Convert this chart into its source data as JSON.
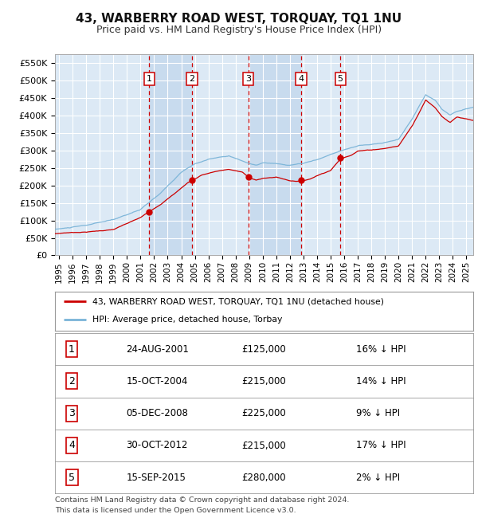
{
  "title": "43, WARBERRY ROAD WEST, TORQUAY, TQ1 1NU",
  "subtitle": "Price paid vs. HM Land Registry's House Price Index (HPI)",
  "plot_bg_color": "#dce9f5",
  "hpi_color": "#7ab4d8",
  "price_color": "#cc0000",
  "grid_color": "#ffffff",
  "ylim": [
    0,
    575000
  ],
  "yticks": [
    0,
    50000,
    100000,
    150000,
    200000,
    250000,
    300000,
    350000,
    400000,
    450000,
    500000,
    550000
  ],
  "ytick_labels": [
    "£0",
    "£50K",
    "£100K",
    "£150K",
    "£200K",
    "£250K",
    "£300K",
    "£350K",
    "£400K",
    "£450K",
    "£500K",
    "£550K"
  ],
  "xlim_start": 1994.7,
  "xlim_end": 2025.5,
  "transactions": [
    {
      "num": 1,
      "date": "24-AUG-2001",
      "year": 2001.65,
      "price": 125000,
      "pct": "16% ↓ HPI"
    },
    {
      "num": 2,
      "date": "15-OCT-2004",
      "year": 2004.79,
      "price": 215000,
      "pct": "14% ↓ HPI"
    },
    {
      "num": 3,
      "date": "05-DEC-2008",
      "year": 2008.93,
      "price": 225000,
      "pct": "9% ↓ HPI"
    },
    {
      "num": 4,
      "date": "30-OCT-2012",
      "year": 2012.83,
      "price": 215000,
      "pct": "17% ↓ HPI"
    },
    {
      "num": 5,
      "date": "15-SEP-2015",
      "year": 2015.71,
      "price": 280000,
      "pct": "2% ↓ HPI"
    }
  ],
  "legend_label_price": "43, WARBERRY ROAD WEST, TORQUAY, TQ1 1NU (detached house)",
  "legend_label_hpi": "HPI: Average price, detached house, Torbay",
  "footnote_line1": "Contains HM Land Registry data © Crown copyright and database right 2024.",
  "footnote_line2": "This data is licensed under the Open Government Licence v3.0.",
  "xtick_years": [
    1995,
    1996,
    1997,
    1998,
    1999,
    2000,
    2001,
    2002,
    2003,
    2004,
    2005,
    2006,
    2007,
    2008,
    2009,
    2010,
    2011,
    2012,
    2013,
    2014,
    2015,
    2016,
    2017,
    2018,
    2019,
    2020,
    2021,
    2022,
    2023,
    2024,
    2025
  ],
  "hpi_kp_x": [
    1994.7,
    1995.5,
    1997,
    1999,
    2001,
    2002.5,
    2004,
    2005,
    2006,
    2007.5,
    2008.5,
    2009.5,
    2010,
    2011,
    2012,
    2013,
    2014,
    2015,
    2016,
    2017,
    2018,
    2019,
    2020,
    2021,
    2022,
    2022.7,
    2023.2,
    2023.8,
    2024.3,
    2025.5
  ],
  "hpi_kp_y": [
    75000,
    78000,
    85000,
    100000,
    130000,
    175000,
    235000,
    258000,
    272000,
    283000,
    268000,
    255000,
    262000,
    258000,
    253000,
    258000,
    268000,
    283000,
    298000,
    308000,
    313000,
    318000,
    328000,
    385000,
    458000,
    442000,
    415000,
    400000,
    410000,
    422000
  ],
  "price_kp_x": [
    1994.7,
    1995.5,
    1997,
    1999,
    2001,
    2001.65,
    2002.5,
    2003.5,
    2004.5,
    2004.79,
    2005.5,
    2006.5,
    2007.5,
    2008.5,
    2008.93,
    2009.5,
    2010,
    2011,
    2012,
    2012.83,
    2013.5,
    2014,
    2015,
    2015.71,
    2016.5,
    2017,
    2018,
    2019,
    2020,
    2021,
    2022,
    2022.7,
    2023.2,
    2023.8,
    2024.3,
    2025.5
  ],
  "price_kp_y": [
    62000,
    65000,
    68000,
    75000,
    108000,
    125000,
    148000,
    178000,
    210000,
    215000,
    232000,
    242000,
    248000,
    240000,
    225000,
    218000,
    222000,
    226000,
    216000,
    215000,
    222000,
    232000,
    248000,
    280000,
    292000,
    305000,
    308000,
    313000,
    320000,
    378000,
    453000,
    432000,
    407000,
    390000,
    405000,
    393000
  ]
}
